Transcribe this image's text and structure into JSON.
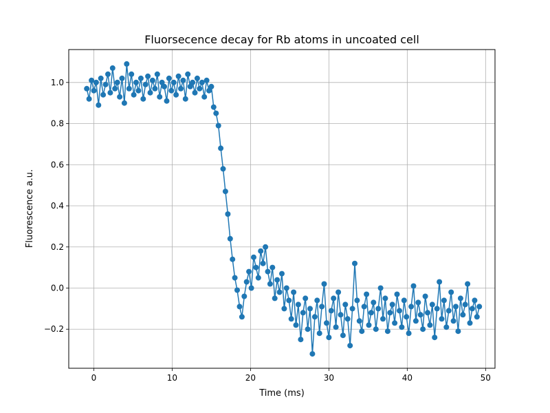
{
  "chart_data": {
    "type": "line",
    "title": "Fluorsecence decay for Rb atoms in uncoated cell",
    "xlabel": "Time (ms)",
    "ylabel": "Fluorescence a.u.",
    "xlim": [
      -3.2,
      51.2
    ],
    "ylim": [
      -0.39,
      1.16
    ],
    "xticks": [
      0,
      10,
      20,
      30,
      40,
      50
    ],
    "xtick_labels": [
      "0",
      "10",
      "20",
      "30",
      "40",
      "50"
    ],
    "yticks": [
      -0.2,
      0.0,
      0.2,
      0.4,
      0.6,
      0.8,
      1.0
    ],
    "ytick_labels": [
      "−0.2",
      "0.0",
      "0.2",
      "0.4",
      "0.6",
      "0.8",
      "1.0"
    ],
    "grid": true,
    "legend": "none",
    "series_color": "#1f77b4",
    "marker": "circle",
    "series": [
      {
        "x": [
          -0.9,
          -0.6,
          -0.3,
          0.0,
          0.3,
          0.6,
          0.9,
          1.2,
          1.5,
          1.8,
          2.1,
          2.4,
          2.7,
          3.0,
          3.3,
          3.6,
          3.9,
          4.2,
          4.5,
          4.8,
          5.1,
          5.4,
          5.7,
          6.0,
          6.3,
          6.6,
          6.9,
          7.2,
          7.5,
          7.8,
          8.1,
          8.4,
          8.7,
          9.0,
          9.3,
          9.6,
          9.9,
          10.2,
          10.5,
          10.8,
          11.1,
          11.4,
          11.7,
          12.0,
          12.3,
          12.6,
          12.9,
          13.2,
          13.5,
          13.8,
          14.1,
          14.4,
          14.7,
          15.0,
          15.3,
          15.6,
          15.9,
          16.2,
          16.5,
          16.8,
          17.1,
          17.4,
          17.7,
          18.0,
          18.3,
          18.6,
          18.9,
          19.2,
          19.5,
          19.8,
          20.1,
          20.4,
          20.7,
          21.0,
          21.3,
          21.6,
          21.9,
          22.2,
          22.5,
          22.8,
          23.1,
          23.4,
          23.7,
          24.0,
          24.3,
          24.6,
          24.9,
          25.2,
          25.5,
          25.8,
          26.1,
          26.4,
          26.7,
          27.0,
          27.3,
          27.6,
          27.9,
          28.2,
          28.5,
          28.8,
          29.1,
          29.4,
          29.7,
          30.0,
          30.3,
          30.6,
          30.9,
          31.2,
          31.5,
          31.8,
          32.1,
          32.4,
          32.7,
          33.0,
          33.3,
          33.6,
          33.9,
          34.2,
          34.5,
          34.8,
          35.1,
          35.4,
          35.7,
          36.0,
          36.3,
          36.6,
          36.9,
          37.2,
          37.5,
          37.8,
          38.1,
          38.4,
          38.7,
          39.0,
          39.3,
          39.6,
          39.9,
          40.2,
          40.5,
          40.8,
          41.1,
          41.4,
          41.7,
          42.0,
          42.3,
          42.6,
          42.9,
          43.2,
          43.5,
          43.8,
          44.1,
          44.4,
          44.7,
          45.0,
          45.3,
          45.6,
          45.9,
          46.2,
          46.5,
          46.8,
          47.1,
          47.4,
          47.7,
          48.0,
          48.3,
          48.6,
          48.9,
          49.2
        ],
        "y": [
          0.97,
          0.92,
          1.01,
          0.96,
          1.0,
          0.89,
          1.02,
          0.94,
          0.99,
          1.04,
          0.95,
          1.07,
          0.97,
          1.0,
          0.93,
          1.02,
          0.9,
          1.09,
          0.97,
          1.04,
          0.94,
          1.0,
          0.96,
          1.02,
          0.92,
          0.99,
          1.03,
          0.95,
          1.01,
          0.97,
          1.04,
          0.93,
          1.0,
          0.98,
          0.91,
          1.02,
          0.96,
          1.0,
          0.94,
          1.03,
          0.97,
          1.01,
          0.92,
          1.04,
          0.98,
          1.0,
          0.95,
          1.02,
          0.97,
          1.0,
          0.93,
          1.01,
          0.96,
          0.98,
          0.88,
          0.85,
          0.79,
          0.68,
          0.58,
          0.47,
          0.36,
          0.24,
          0.14,
          0.05,
          -0.01,
          -0.09,
          -0.14,
          -0.04,
          0.03,
          0.08,
          0.0,
          0.15,
          0.1,
          0.05,
          0.18,
          0.12,
          0.2,
          0.08,
          0.02,
          0.1,
          -0.05,
          0.04,
          -0.02,
          0.07,
          -0.1,
          0.0,
          -0.06,
          -0.15,
          -0.02,
          -0.18,
          -0.08,
          -0.25,
          -0.12,
          -0.05,
          -0.2,
          -0.1,
          -0.32,
          -0.14,
          -0.06,
          -0.22,
          -0.09,
          0.02,
          -0.17,
          -0.24,
          -0.11,
          -0.05,
          -0.19,
          -0.02,
          -0.13,
          -0.23,
          -0.08,
          -0.15,
          -0.28,
          -0.1,
          0.12,
          -0.06,
          -0.16,
          -0.21,
          -0.09,
          -0.03,
          -0.18,
          -0.12,
          -0.07,
          -0.2,
          -0.1,
          0.0,
          -0.15,
          -0.05,
          -0.21,
          -0.12,
          -0.08,
          -0.17,
          -0.03,
          -0.11,
          -0.19,
          -0.06,
          -0.14,
          -0.22,
          -0.09,
          0.01,
          -0.16,
          -0.07,
          -0.13,
          -0.2,
          -0.04,
          -0.12,
          -0.18,
          -0.08,
          -0.24,
          -0.1,
          0.03,
          -0.15,
          -0.06,
          -0.19,
          -0.11,
          -0.02,
          -0.16,
          -0.09,
          -0.21,
          -0.05,
          -0.13,
          -0.08,
          0.02,
          -0.17,
          -0.1,
          -0.06,
          -0.14,
          -0.09
        ]
      }
    ]
  }
}
